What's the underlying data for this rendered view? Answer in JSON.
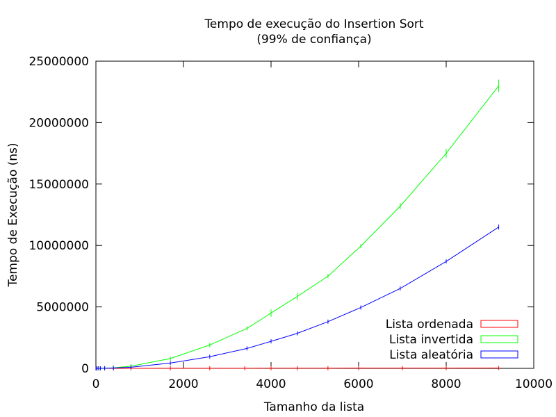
{
  "chart_data": {
    "type": "line",
    "title": "Tempo de execução do Insertion Sort",
    "subtitle": "(99% de confiança)",
    "xlabel": "Tamanho da lista",
    "ylabel": "Tempo de Execução (ns)",
    "xlim": [
      0,
      10000
    ],
    "ylim": [
      0,
      25000000
    ],
    "x_ticks": [
      "0",
      "2000",
      "4000",
      "6000",
      "8000",
      "10000"
    ],
    "y_ticks": [
      "0",
      "5000000",
      "10000000",
      "15000000",
      "20000000",
      "25000000"
    ],
    "grid": false,
    "legend_position": "bottom-right",
    "series": [
      {
        "name": "Lista ordenada",
        "color": "#ff0000",
        "x": [
          0,
          10,
          50,
          100,
          200,
          400,
          800,
          1700,
          2600,
          3400,
          4000,
          4600,
          5300,
          6000,
          7000,
          8000,
          9200
        ],
        "y": [
          0,
          50,
          150,
          300,
          600,
          1200,
          2400,
          5100,
          7800,
          10200,
          12000,
          13800,
          15900,
          18000,
          21000,
          24000,
          27600
        ],
        "error": [
          0,
          0,
          0,
          0,
          0,
          0,
          0,
          0,
          0,
          0,
          0,
          0,
          0,
          0,
          0,
          0,
          0
        ]
      },
      {
        "name": "Lista invertida",
        "color": "#00ff00",
        "x": [
          0,
          10,
          50,
          100,
          200,
          400,
          800,
          1700,
          2600,
          3450,
          4000,
          4600,
          5300,
          6050,
          6950,
          8000,
          9200
        ],
        "y": [
          0,
          50,
          700,
          3000,
          11000,
          45000,
          180000,
          800000,
          1900000,
          3250000,
          4500000,
          5850000,
          7500000,
          9950000,
          13200000,
          17500000,
          23000000
        ],
        "error": [
          0,
          0,
          0,
          0,
          0,
          0,
          0,
          30000,
          60000,
          80000,
          300000,
          300000,
          100000,
          150000,
          250000,
          350000,
          500000
        ]
      },
      {
        "name": "Lista aleatória",
        "color": "#0000ff",
        "x": [
          0,
          10,
          50,
          100,
          200,
          400,
          800,
          1700,
          2600,
          3450,
          4000,
          4600,
          5300,
          6050,
          6950,
          8000,
          9200
        ],
        "y": [
          0,
          30,
          350,
          1500,
          6000,
          25000,
          95000,
          430000,
          950000,
          1620000,
          2200000,
          2850000,
          3800000,
          4950000,
          6500000,
          8700000,
          11500000
        ],
        "error": [
          0,
          0,
          0,
          0,
          0,
          0,
          0,
          20000,
          30000,
          40000,
          60000,
          60000,
          70000,
          70000,
          90000,
          120000,
          200000
        ]
      }
    ]
  }
}
